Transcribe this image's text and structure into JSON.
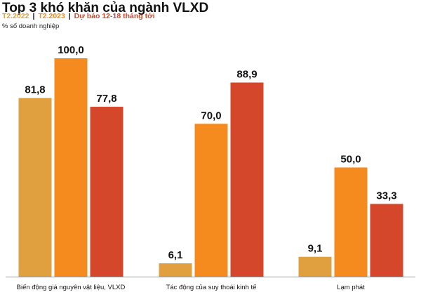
{
  "chart_data": {
    "type": "bar",
    "title": "Top 3 khó khăn của ngành VLXD",
    "subtitle": "% số doanh nghiệp",
    "categories": [
      "Biến động giá nguyên vật liệu, VLXD",
      "Tác động của suy thoái kinh tế",
      "Lạm phát"
    ],
    "series": [
      {
        "name": "T2.2022",
        "color": "#E0A040",
        "values": [
          81.8,
          6.1,
          9.1
        ],
        "labels": [
          "81,8",
          "6,1",
          "9,1"
        ]
      },
      {
        "name": "T2.2023",
        "color": "#F58A1F",
        "values": [
          100.0,
          70.0,
          50.0
        ],
        "labels": [
          "100,0",
          "70,0",
          "50,0"
        ]
      },
      {
        "name": "Dự báo 12-18 tháng tới",
        "color": "#D4472A",
        "values": [
          77.8,
          88.9,
          33.3
        ],
        "labels": [
          "77,8",
          "88,9",
          "33,3"
        ]
      }
    ],
    "ylim": [
      0,
      100
    ],
    "legend_position": "top-left",
    "grid": false
  }
}
